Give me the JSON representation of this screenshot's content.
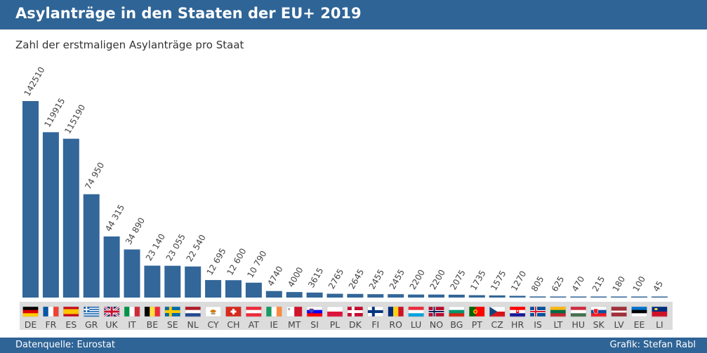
{
  "header": {
    "title": "Asylanträge in den Staaten der EU+ 2019"
  },
  "subtitle": "Zahl der erstmaligen Asylanträge pro Staat",
  "footer": {
    "source": "Datenquelle: Eurostat",
    "credit": "Grafik: Stefan Rabl"
  },
  "colors": {
    "bar": "#336699",
    "header": "#2f6496",
    "flag_strip": "#dcdcdc"
  },
  "chart_data": {
    "type": "bar",
    "title": "Asylanträge in den Staaten der EU+ 2019",
    "subtitle": "Zahl der erstmaligen Asylanträge pro Staat",
    "xlabel": "",
    "ylabel": "",
    "ylim": [
      0,
      142510
    ],
    "grid": false,
    "categories": [
      "DE",
      "FR",
      "ES",
      "GR",
      "UK",
      "IT",
      "BE",
      "SE",
      "NL",
      "CY",
      "CH",
      "AT",
      "IE",
      "MT",
      "SI",
      "PL",
      "DK",
      "FI",
      "RO",
      "LU",
      "NO",
      "BG",
      "PT",
      "CZ",
      "HR",
      "IS",
      "LT",
      "HU",
      "SK",
      "LV",
      "EE",
      "LI"
    ],
    "values": [
      142510,
      119915,
      115190,
      74950,
      44315,
      34890,
      23140,
      23055,
      22540,
      12695,
      12600,
      10790,
      4740,
      4000,
      3615,
      2765,
      2645,
      2455,
      2455,
      2200,
      2200,
      2075,
      1735,
      1575,
      1270,
      805,
      625,
      470,
      215,
      180,
      100,
      45
    ],
    "labels": [
      "142510",
      "119915",
      "115190",
      "74 950",
      "44 315",
      "34 890",
      "23 140",
      "23 055",
      "22 540",
      "12 695",
      "12 600",
      "10 790",
      "4740",
      "4000",
      "3615",
      "2765",
      "2645",
      "2455",
      "2455",
      "2200",
      "2200",
      "2075",
      "1735",
      "1575",
      "1270",
      "805",
      "625",
      "470",
      "215",
      "180",
      "100",
      "45"
    ]
  },
  "flags": [
    "germany-flag",
    "france-flag",
    "spain-flag",
    "greece-flag",
    "uk-flag",
    "italy-flag",
    "belgium-flag",
    "sweden-flag",
    "netherlands-flag",
    "cyprus-flag",
    "switzerland-flag",
    "austria-flag",
    "ireland-flag",
    "malta-flag",
    "slovenia-flag",
    "poland-flag",
    "denmark-flag",
    "finland-flag",
    "romania-flag",
    "luxembourg-flag",
    "norway-flag",
    "bulgaria-flag",
    "portugal-flag",
    "czechia-flag",
    "croatia-flag",
    "iceland-flag",
    "lithuania-flag",
    "hungary-flag",
    "slovakia-flag",
    "latvia-flag",
    "estonia-flag",
    "liechtenstein-flag"
  ]
}
